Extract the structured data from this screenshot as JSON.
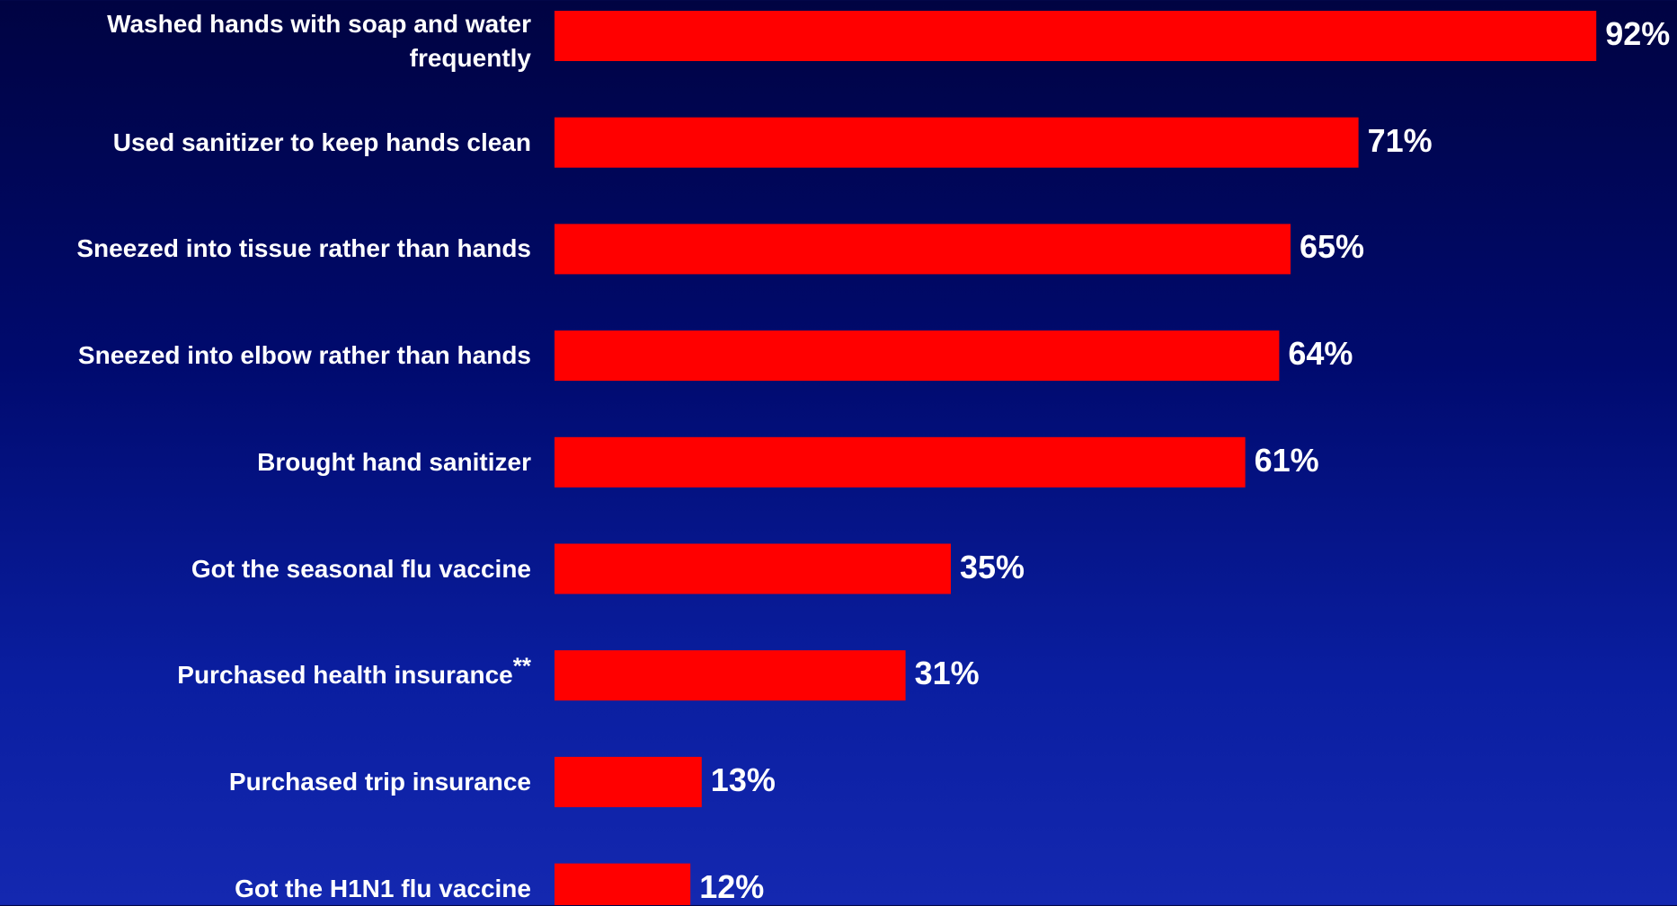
{
  "chart_data": {
    "type": "bar",
    "orientation": "horizontal",
    "categories": [
      "Washed hands with soap and water frequently",
      "Used sanitizer to keep hands clean",
      "Sneezed into tissue rather than hands",
      "Sneezed into elbow rather than hands",
      "Brought hand sanitizer",
      "Got the seasonal flu vaccine",
      "Purchased health insurance",
      "Purchased trip insurance",
      "Got the H1N1 flu vaccine"
    ],
    "category_footnotes": [
      "",
      "",
      "",
      "",
      "",
      "",
      "**",
      "",
      ""
    ],
    "values": [
      92,
      71,
      65,
      64,
      61,
      35,
      31,
      13,
      12
    ],
    "value_labels": [
      "92%",
      "71%",
      "65%",
      "64%",
      "61%",
      "35%",
      "31%",
      "13%",
      "12%"
    ],
    "xlim": [
      0,
      100
    ],
    "grid": false,
    "legend": "none",
    "colors": {
      "bar": "#ff0000",
      "text": "#ffffff",
      "background_top": "#000342",
      "background_bottom": "#1428b0"
    }
  }
}
